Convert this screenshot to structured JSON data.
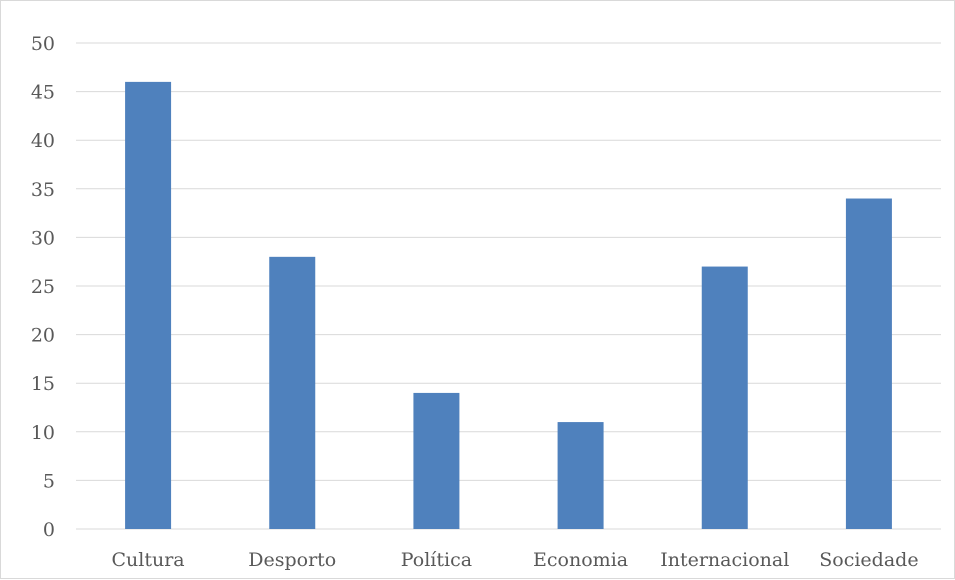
{
  "chart_data": {
    "type": "bar",
    "title": "",
    "xlabel": "",
    "ylabel": "",
    "categories": [
      "Cultura",
      "Desporto",
      "Política",
      "Economia",
      "Internacional",
      "Sociedade"
    ],
    "values": [
      46,
      28,
      14,
      11,
      27,
      34
    ],
    "ylim": [
      0,
      50
    ],
    "yticks": [
      0,
      5,
      10,
      15,
      20,
      25,
      30,
      35,
      40,
      45,
      50
    ],
    "bar_color": "#4f81bd",
    "grid": true,
    "legend": "none"
  }
}
